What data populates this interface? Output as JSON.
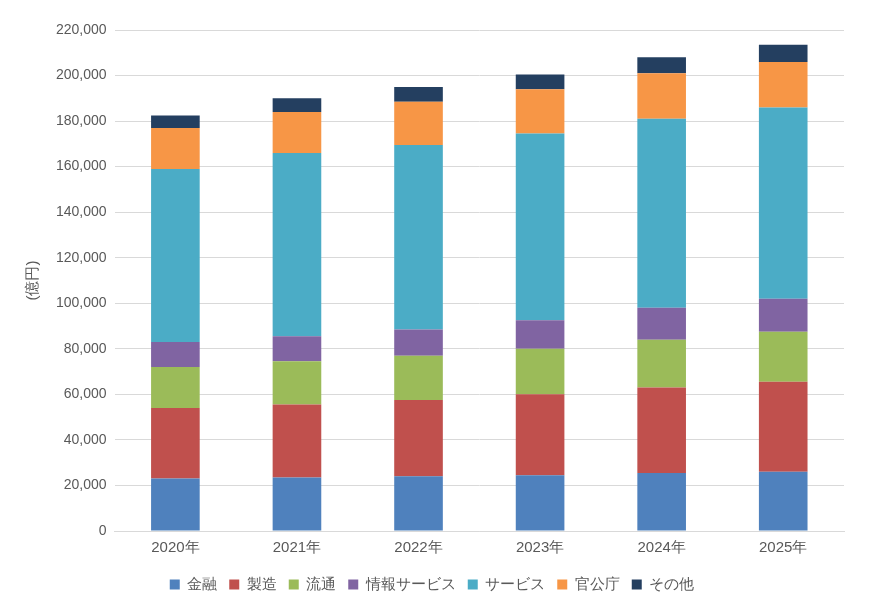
{
  "chart_data": {
    "type": "bar",
    "stacked": true,
    "y_label": "(億円)",
    "categories": [
      "2020年",
      "2021年",
      "2022年",
      "2023年",
      "2024年",
      "2025年"
    ],
    "series": [
      {
        "name": "金融",
        "color": "#4f81bd",
        "values": [
          23000,
          23500,
          24000,
          24500,
          25500,
          26000
        ]
      },
      {
        "name": "製造",
        "color": "#c0504d",
        "values": [
          31000,
          32000,
          33500,
          35500,
          37500,
          39500
        ]
      },
      {
        "name": "流通",
        "color": "#9bbb59",
        "values": [
          18000,
          19000,
          19500,
          20000,
          21000,
          22000
        ]
      },
      {
        "name": "情報サービス",
        "color": "#8064a2",
        "values": [
          11000,
          11000,
          11500,
          12500,
          14000,
          14500
        ]
      },
      {
        "name": "サービス",
        "color": "#4bacc6",
        "values": [
          76000,
          80500,
          81000,
          82000,
          83000,
          84000
        ]
      },
      {
        "name": "官公庁",
        "color": "#f79646",
        "values": [
          18000,
          18000,
          19000,
          19500,
          20000,
          20000
        ]
      },
      {
        "name": "その他",
        "color": "#243f60",
        "values": [
          5500,
          6000,
          6500,
          6500,
          7000,
          7500
        ]
      }
    ],
    "ylim": [
      0,
      220000
    ],
    "yticks": [
      0,
      {
        "value": 20000,
        "label": "20,000"
      },
      {
        "value": 40000,
        "label": "40,000"
      },
      {
        "value": 60000,
        "label": "60,000"
      },
      {
        "value": 80000,
        "label": "80,000"
      },
      {
        "value": 100000,
        "label": "100,000"
      },
      {
        "value": 120000,
        "label": "120,000"
      },
      {
        "value": 140000,
        "label": "140,000"
      },
      {
        "value": 160000,
        "label": "160,000"
      },
      {
        "value": 180000,
        "label": "180,000"
      },
      {
        "value": 200000,
        "label": "200,000"
      },
      {
        "value": 220000,
        "label": "220,000"
      }
    ],
    "grid": true,
    "legend": "bottom"
  }
}
